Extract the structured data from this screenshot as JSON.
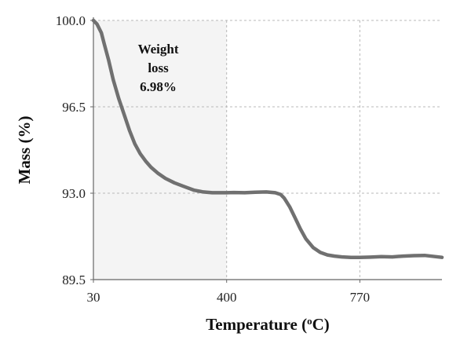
{
  "chart_data": {
    "type": "line",
    "title": "",
    "xlabel": "Temperature (",
    "xlabel_sup": "o",
    "xlabel_suffix": "C)",
    "ylabel": "Mass (%)",
    "xlim": [
      30,
      998
    ],
    "ylim": [
      89.5,
      100.0
    ],
    "x_ticks": [
      30,
      400,
      770
    ],
    "x_tick_labels": [
      "30",
      "400",
      "770"
    ],
    "y_ticks": [
      89.5,
      93.0,
      96.5,
      100.0
    ],
    "y_tick_labels": [
      "89.5",
      "93.0",
      "96.5",
      "100.0"
    ],
    "grid": true,
    "shaded_region": {
      "x_from": 30,
      "x_to": 400,
      "color": "#f4f4f4"
    },
    "annotation": {
      "lines": [
        "Weight",
        "loss",
        "6.98%"
      ],
      "x": 210,
      "y_top": 99.3
    },
    "line_color": "#707070",
    "series": [
      {
        "name": "",
        "x": [
          30,
          40,
          52,
          60,
          72,
          85,
          100,
          115,
          130,
          145,
          160,
          175,
          190,
          210,
          230,
          255,
          280,
          310,
          335,
          360,
          385,
          400,
          420,
          450,
          480,
          510,
          535,
          550,
          560,
          575,
          590,
          605,
          620,
          640,
          660,
          680,
          700,
          720,
          745,
          770,
          800,
          830,
          860,
          890,
          920,
          950,
          998
        ],
        "y": [
          100.0,
          99.85,
          99.5,
          99.05,
          98.4,
          97.6,
          96.85,
          96.2,
          95.55,
          95.0,
          94.6,
          94.3,
          94.05,
          93.8,
          93.6,
          93.42,
          93.28,
          93.12,
          93.05,
          93.02,
          93.02,
          93.02,
          93.03,
          93.02,
          93.04,
          93.05,
          93.02,
          92.95,
          92.8,
          92.45,
          92.0,
          91.55,
          91.15,
          90.8,
          90.6,
          90.5,
          90.45,
          90.42,
          90.4,
          90.4,
          90.41,
          90.43,
          90.42,
          90.45,
          90.47,
          90.48,
          90.4
        ]
      }
    ]
  }
}
